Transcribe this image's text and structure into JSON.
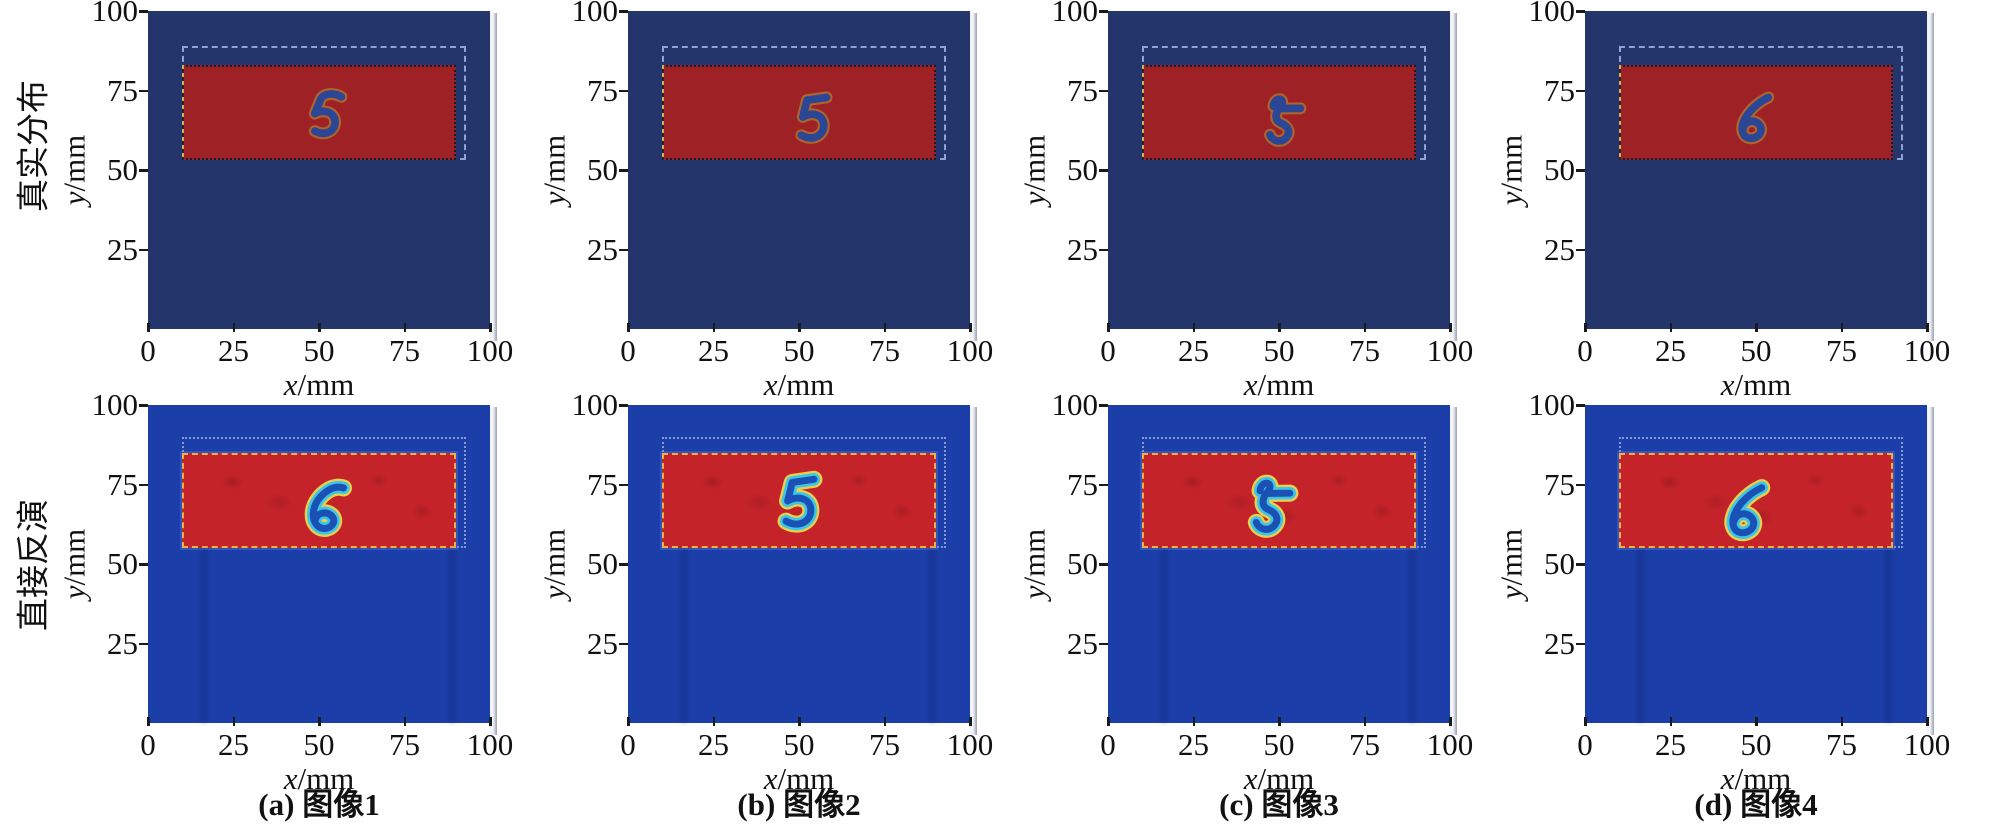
{
  "figure": {
    "rows": [
      {
        "id": "true",
        "label": "真实分布"
      },
      {
        "id": "inversion",
        "label": "直接反演"
      }
    ],
    "columns": [
      {
        "id": "a",
        "caption": "(a) 图像1"
      },
      {
        "id": "b",
        "caption": "(b) 图像2"
      },
      {
        "id": "c",
        "caption": "(c) 图像3"
      },
      {
        "id": "d",
        "caption": "(d) 图像4"
      }
    ],
    "axis": {
      "x_label": "x/mm",
      "y_label": "y/mm",
      "x_ticks": [
        0,
        25,
        50,
        75,
        100
      ],
      "y_ticks": [
        100,
        75,
        50,
        25
      ],
      "x_range": [
        0,
        100
      ],
      "y_range": [
        0,
        100
      ]
    },
    "colors": {
      "true_background": "#24356b",
      "true_region": "#9e2125",
      "true_region_border": "#1a1a2e",
      "true_region_left_accent": "#d8b043",
      "true_dashed_outline": "#8fa3d6",
      "true_digit": "#2b4694",
      "true_digit_fringe": "#b4762e",
      "inversion_background": "#1c3ea9",
      "inversion_region": "#c42329",
      "inversion_region_border": "#f0b042",
      "inversion_dashed_outline": "#a0afdc",
      "inversion_digit_core": "#1b50b5",
      "inversion_digit_inner_ring": "#3ec4e6",
      "inversion_digit_outer_ring": "#e9cf4b",
      "tick_text": "#111111"
    }
  },
  "chart_data": [
    {
      "type": "heatmap",
      "panel": "a",
      "row_label": "真实分布",
      "caption": "(a) 图像1",
      "digit": "5",
      "x_range": [
        0,
        100
      ],
      "y_range": [
        0,
        100
      ],
      "x_ticks": [
        0,
        25,
        50,
        75,
        100
      ],
      "y_ticks": [
        100,
        75,
        50,
        25
      ],
      "region_mm": {
        "x": [
          10,
          90
        ],
        "y": [
          53,
          83
        ]
      },
      "dashed_boundary_mm": {
        "x": [
          10,
          93
        ],
        "y": [
          53,
          89
        ]
      },
      "background_color": "#24356b",
      "region_color": "#9e2125"
    },
    {
      "type": "heatmap",
      "panel": "b",
      "row_label": "真实分布",
      "caption": "(b) 图像2",
      "digit": "5",
      "x_range": [
        0,
        100
      ],
      "y_range": [
        0,
        100
      ],
      "x_ticks": [
        0,
        25,
        50,
        75,
        100
      ],
      "y_ticks": [
        100,
        75,
        50,
        25
      ],
      "region_mm": {
        "x": [
          10,
          90
        ],
        "y": [
          53,
          83
        ]
      },
      "dashed_boundary_mm": {
        "x": [
          10,
          93
        ],
        "y": [
          53,
          89
        ]
      },
      "background_color": "#24356b",
      "region_color": "#9e2125"
    },
    {
      "type": "heatmap",
      "panel": "c",
      "row_label": "真实分布",
      "caption": "(c) 图像3",
      "digit": "5",
      "x_range": [
        0,
        100
      ],
      "y_range": [
        0,
        100
      ],
      "x_ticks": [
        0,
        25,
        50,
        75,
        100
      ],
      "y_ticks": [
        100,
        75,
        50,
        25
      ],
      "region_mm": {
        "x": [
          10,
          90
        ],
        "y": [
          53,
          83
        ]
      },
      "dashed_boundary_mm": {
        "x": [
          10,
          93
        ],
        "y": [
          53,
          89
        ]
      },
      "background_color": "#24356b",
      "region_color": "#9e2125"
    },
    {
      "type": "heatmap",
      "panel": "d",
      "row_label": "真实分布",
      "caption": "(d) 图像4",
      "digit": "6",
      "x_range": [
        0,
        100
      ],
      "y_range": [
        0,
        100
      ],
      "x_ticks": [
        0,
        25,
        50,
        75,
        100
      ],
      "y_ticks": [
        100,
        75,
        50,
        25
      ],
      "region_mm": {
        "x": [
          10,
          90
        ],
        "y": [
          53,
          83
        ]
      },
      "dashed_boundary_mm": {
        "x": [
          10,
          93
        ],
        "y": [
          53,
          89
        ]
      },
      "background_color": "#24356b",
      "region_color": "#9e2125"
    },
    {
      "type": "heatmap",
      "panel": "a",
      "row_label": "直接反演",
      "caption": "(a) 图像1",
      "digit": "6",
      "x_range": [
        0,
        100
      ],
      "y_range": [
        0,
        100
      ],
      "x_ticks": [
        0,
        25,
        50,
        75,
        100
      ],
      "y_ticks": [
        100,
        75,
        50,
        25
      ],
      "region_mm": {
        "x": [
          10,
          90
        ],
        "y": [
          55,
          85
        ]
      },
      "dashed_boundary_mm": {
        "x": [
          10,
          93
        ],
        "y": [
          55,
          90
        ]
      },
      "background_color": "#1c3ea9",
      "region_color": "#c42329"
    },
    {
      "type": "heatmap",
      "panel": "b",
      "row_label": "直接反演",
      "caption": "(b) 图像2",
      "digit": "5",
      "x_range": [
        0,
        100
      ],
      "y_range": [
        0,
        100
      ],
      "x_ticks": [
        0,
        25,
        50,
        75,
        100
      ],
      "y_ticks": [
        100,
        75,
        50,
        25
      ],
      "region_mm": {
        "x": [
          10,
          90
        ],
        "y": [
          55,
          85
        ]
      },
      "dashed_boundary_mm": {
        "x": [
          10,
          93
        ],
        "y": [
          55,
          90
        ]
      },
      "background_color": "#1c3ea9",
      "region_color": "#c42329"
    },
    {
      "type": "heatmap",
      "panel": "c",
      "row_label": "直接反演",
      "caption": "(c) 图像3",
      "digit": "5",
      "x_range": [
        0,
        100
      ],
      "y_range": [
        0,
        100
      ],
      "x_ticks": [
        0,
        25,
        50,
        75,
        100
      ],
      "y_ticks": [
        100,
        75,
        50,
        25
      ],
      "region_mm": {
        "x": [
          10,
          90
        ],
        "y": [
          55,
          85
        ]
      },
      "dashed_boundary_mm": {
        "x": [
          10,
          93
        ],
        "y": [
          55,
          90
        ]
      },
      "background_color": "#1c3ea9",
      "region_color": "#c42329"
    },
    {
      "type": "heatmap",
      "panel": "d",
      "row_label": "直接反演",
      "caption": "(d) 图像4",
      "digit": "6",
      "x_range": [
        0,
        100
      ],
      "y_range": [
        0,
        100
      ],
      "x_ticks": [
        0,
        25,
        50,
        75,
        100
      ],
      "y_ticks": [
        100,
        75,
        50,
        25
      ],
      "region_mm": {
        "x": [
          10,
          90
        ],
        "y": [
          55,
          85
        ]
      },
      "dashed_boundary_mm": {
        "x": [
          10,
          93
        ],
        "y": [
          55,
          90
        ]
      },
      "background_color": "#1c3ea9",
      "region_color": "#c42329"
    }
  ]
}
